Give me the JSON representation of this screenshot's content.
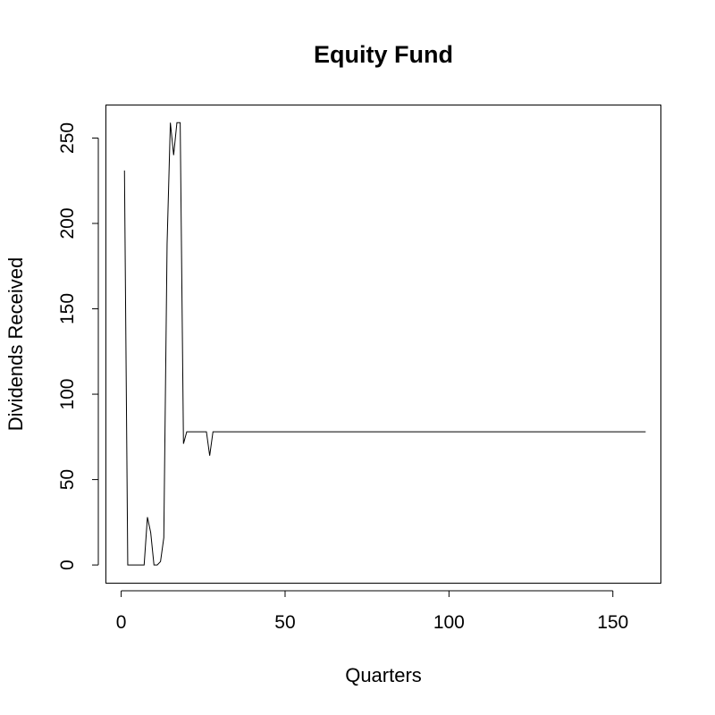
{
  "chart_data": {
    "type": "line",
    "title": "Equity Fund",
    "xlabel": "Quarters",
    "ylabel": "Dividends Received",
    "xlim": [
      -4.8,
      164.8
    ],
    "ylim": [
      -10.4,
      269.6
    ],
    "xticks": [
      0,
      50,
      100,
      150
    ],
    "yticks": [
      0,
      50,
      100,
      150,
      200,
      250
    ],
    "grid": false,
    "legend": "none",
    "series": [
      {
        "color": "#000000",
        "points": [
          [
            1,
            231
          ],
          [
            2,
            0
          ],
          [
            3,
            0
          ],
          [
            4,
            0
          ],
          [
            5,
            0
          ],
          [
            6,
            0
          ],
          [
            7,
            0
          ],
          [
            8,
            28
          ],
          [
            9,
            19
          ],
          [
            10,
            0
          ],
          [
            11,
            0
          ],
          [
            12,
            2
          ],
          [
            13,
            16
          ],
          [
            14,
            188
          ],
          [
            15,
            259
          ],
          [
            16,
            240
          ],
          [
            17,
            259
          ],
          [
            18,
            259
          ],
          [
            19,
            71
          ],
          [
            20,
            78
          ],
          [
            21,
            78
          ],
          [
            22,
            78
          ],
          [
            23,
            78
          ],
          [
            24,
            78
          ],
          [
            25,
            78
          ],
          [
            26,
            78
          ],
          [
            27,
            64
          ],
          [
            28,
            78
          ],
          [
            160,
            78
          ]
        ]
      }
    ]
  }
}
